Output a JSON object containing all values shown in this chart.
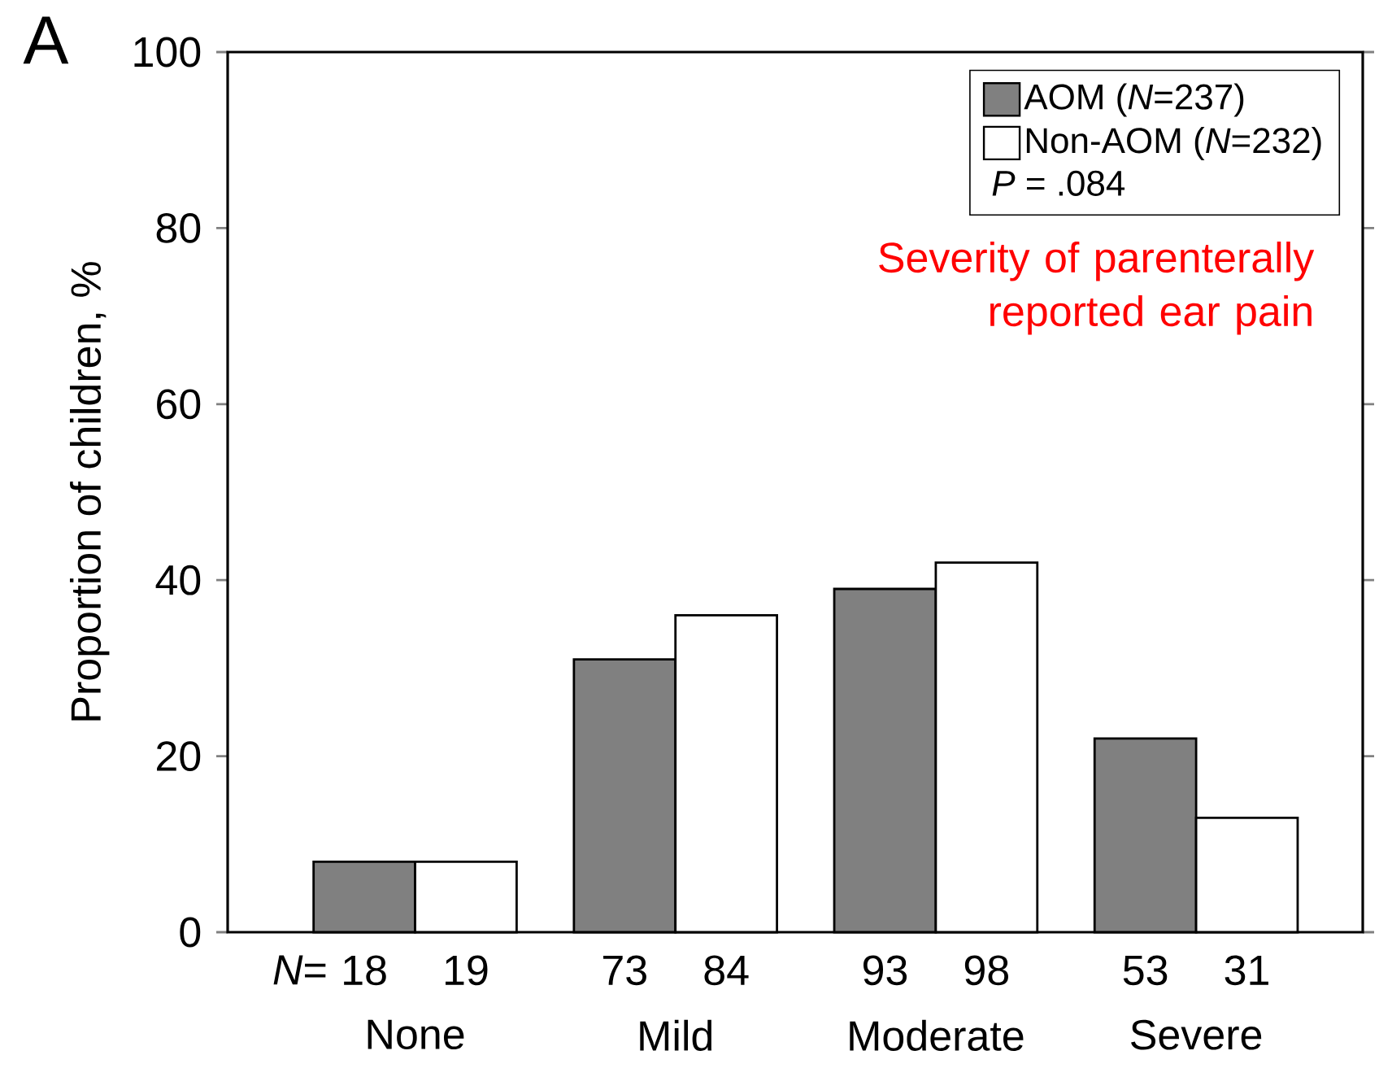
{
  "chart_data": {
    "type": "bar",
    "title": "Severity of parenterally reported ear pain",
    "ylabel": "Proportion of children, %",
    "categories": [
      "None",
      "Mild",
      "Moderate",
      "Severe"
    ],
    "series": [
      {
        "name": "AOM (*N*=237)",
        "color": "#808080",
        "values": [
          8,
          31,
          39,
          22
        ]
      },
      {
        "name": "Non-AOM (*N*=232)",
        "color": "#ffffff",
        "values": [
          8,
          36,
          42,
          13
        ]
      }
    ],
    "ylim": [
      0,
      100
    ],
    "yticks": [
      0,
      20,
      40,
      60,
      80,
      100
    ],
    "legend": "top right",
    "annotations": [
      "A",
      "*P* = .084",
      "*N*=",
      "18",
      "19",
      "73",
      "84",
      "93",
      "98",
      "53",
      "31"
    ]
  }
}
